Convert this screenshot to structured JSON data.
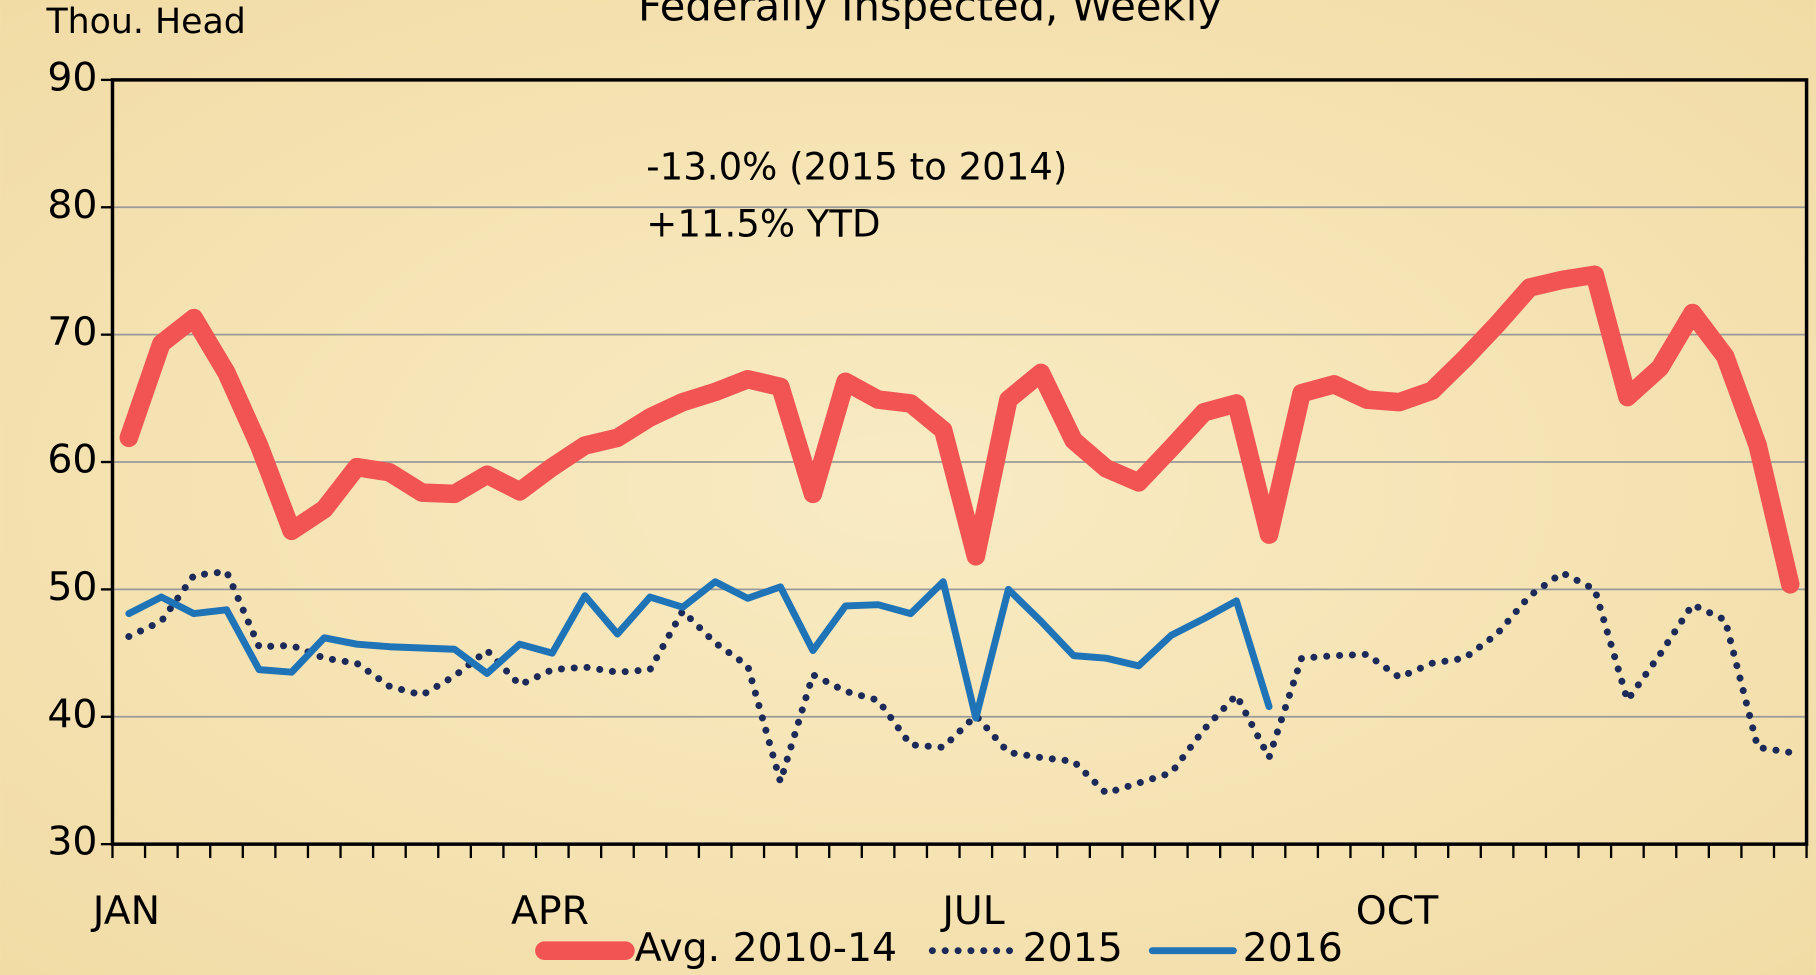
{
  "chart_data": {
    "type": "line",
    "title": "Federally Inspected, Weekly",
    "y_label": "Thou. Head",
    "annotations": [
      "-13.0% (2015 to 2014)",
      "+11.5% YTD"
    ],
    "categories": [
      "JAN",
      null,
      null,
      null,
      null,
      null,
      null,
      null,
      null,
      null,
      null,
      null,
      null,
      "APR",
      null,
      null,
      null,
      null,
      null,
      null,
      null,
      null,
      null,
      null,
      null,
      null,
      "JUL",
      null,
      null,
      null,
      null,
      null,
      null,
      null,
      null,
      null,
      null,
      null,
      null,
      "OCT",
      null,
      null,
      null,
      null,
      null,
      null,
      null,
      null,
      null,
      null,
      null,
      null
    ],
    "series": [
      {
        "name": "Avg. 2010-14",
        "color": "#f25353",
        "style": "solid",
        "width": 16,
        "values": [
          61.9,
          69.3,
          71.3,
          67,
          61.3,
          54.6,
          56.3,
          59.6,
          59.2,
          57.6,
          57.5,
          59,
          57.7,
          59.6,
          61.3,
          61.9,
          63.5,
          64.7,
          65.5,
          66.5,
          65.9,
          57.5,
          66.3,
          64.9,
          64.6,
          62.5,
          52.6,
          64.9,
          67,
          61.7,
          59.5,
          58.4,
          61.1,
          63.9,
          64.6,
          54.3,
          65.4,
          66.1,
          64.9,
          64.7,
          65.6,
          68.1,
          70.8,
          73.7,
          74.3,
          74.7,
          65.1,
          67.4,
          71.7,
          68.3,
          61.3,
          50.4
        ]
      },
      {
        "name": "2015",
        "color": "#1c2a5a",
        "style": "dotted",
        "width": 6,
        "values": [
          46.3,
          47.5,
          51.1,
          51.4,
          45.5,
          45.6,
          44.6,
          44.2,
          42.4,
          41.7,
          43.2,
          45.2,
          42.5,
          43.7,
          43.9,
          43.5,
          43.7,
          48.3,
          45.8,
          44,
          34.9,
          43.3,
          42,
          41.3,
          37.8,
          37.6,
          40.1,
          37.2,
          36.8,
          36.5,
          34,
          34.8,
          35.6,
          39,
          41.7,
          36.8,
          44.6,
          44.8,
          44.9,
          43.1,
          44.2,
          44.6,
          46.5,
          49.5,
          51.3,
          50,
          41.3,
          44.9,
          48.8,
          47.6,
          37.6,
          37.2
        ]
      },
      {
        "name": "2016",
        "color": "#1f73b7",
        "style": "solid",
        "width": 6,
        "values": [
          48.1,
          49.4,
          48.1,
          48.4,
          43.7,
          43.5,
          46.2,
          45.7,
          45.5,
          45.4,
          45.3,
          43.4,
          45.7,
          45,
          49.5,
          46.5,
          49.4,
          48.6,
          50.6,
          49.3,
          50.2,
          45.2,
          48.7,
          48.8,
          48.1,
          50.6,
          39.9,
          50,
          47.5,
          44.8,
          44.6,
          44,
          46.4,
          47.7,
          49.1,
          40.8,
          null,
          null,
          null,
          null,
          null,
          null,
          null,
          null,
          null,
          null,
          null,
          null,
          null,
          null,
          null,
          null
        ]
      }
    ],
    "ylim": [
      30,
      90
    ],
    "yticks": [
      30,
      40,
      50,
      60,
      70,
      80,
      90
    ],
    "grid": true
  }
}
